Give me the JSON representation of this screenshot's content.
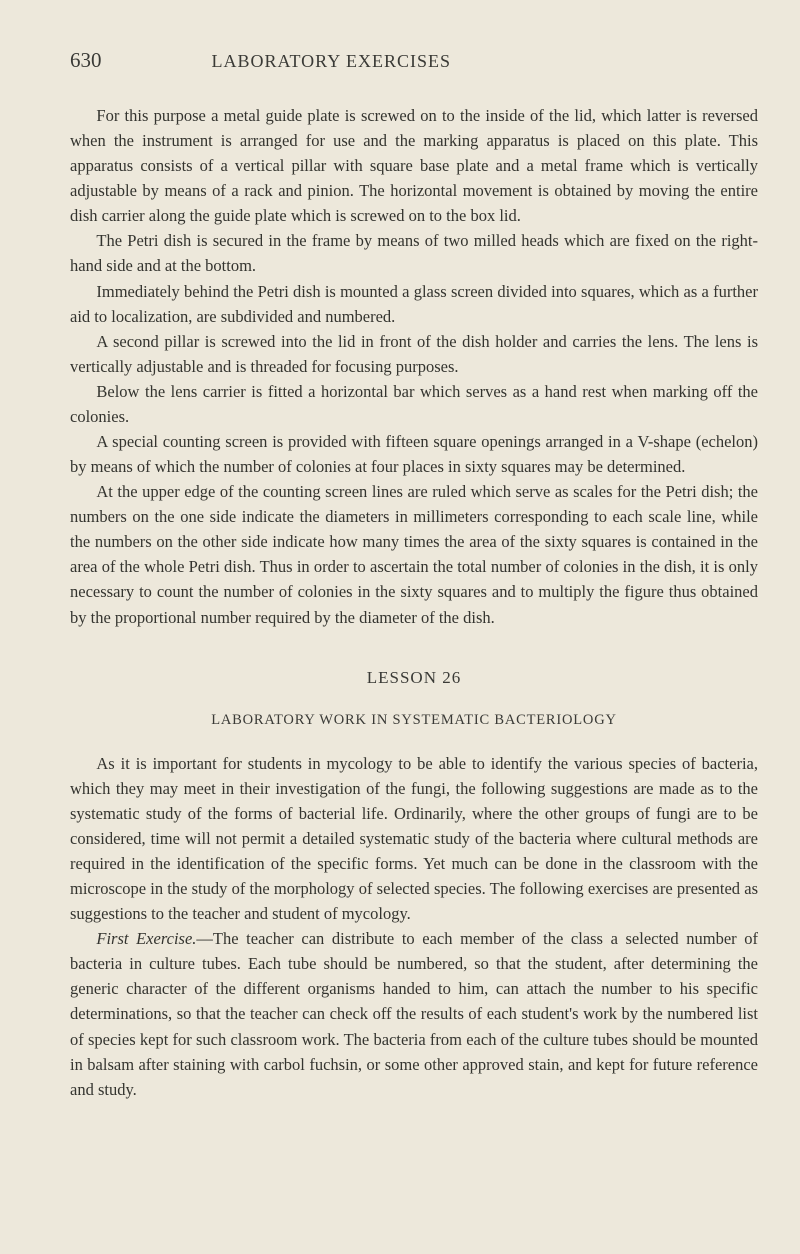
{
  "header": {
    "page_number": "630",
    "title": "LABORATORY EXERCISES"
  },
  "paragraphs": {
    "p1": "For this purpose a metal guide plate is screwed on to the inside of the lid, which latter is reversed when the instrument is arranged for use and the marking apparatus is placed on this plate. This apparatus consists of a vertical pillar with square base plate and a metal frame which is vertically adjustable by means of a rack and pinion. The horizontal movement is obtained by moving the entire dish carrier along the guide plate which is screwed on to the box lid.",
    "p2": "The Petri dish is secured in the frame by means of two milled heads which are fixed on the right-hand side and at the bottom.",
    "p3": "Immediately behind the Petri dish is mounted a glass screen divided into squares, which as a further aid to localization, are subdivided and numbered.",
    "p4": "A second pillar is screwed into the lid in front of the dish holder and carries the lens. The lens is vertically adjustable and is threaded for focusing purposes.",
    "p5": "Below the lens carrier is fitted a horizontal bar which serves as a hand rest when marking off the colonies.",
    "p6": "A special counting screen is provided with fifteen square openings arranged in a V-shape (echelon) by means of which the number of colonies at four places in sixty squares may be determined.",
    "p7": "At the upper edge of the counting screen lines are ruled which serve as scales for the Petri dish; the numbers on the one side indicate the diameters in millimeters corresponding to each scale line, while the numbers on the other side indicate how many times the area of the sixty squares is contained in the area of the whole Petri dish. Thus in order to ascertain the total number of colonies in the dish, it is only necessary to count the number of colonies in the sixty squares and to multiply the figure thus obtained by the proportional number required by the diameter of the dish.",
    "lesson": "LESSON 26",
    "subheading": "LABORATORY WORK IN SYSTEMATIC BACTERIOLOGY",
    "p8": "As it is important for students in mycology to be able to identify the various species of bacteria, which they may meet in their investigation of the fungi, the following suggestions are made as to the systematic study of the forms of bacterial life. Ordinarily, where the other groups of fungi are to be considered, time will not permit a detailed systematic study of the bacteria where cultural methods are required in the identification of the specific forms. Yet much can be done in the classroom with the microscope in the study of the morphology of selected species. The following exercises are presented as suggestions to the teacher and student of mycology.",
    "p9_label": "First Exercise.",
    "p9_rest": "—The teacher can distribute to each member of the class a selected number of bacteria in culture tubes. Each tube should be numbered, so that the student, after determining the generic character of the different organisms handed to him, can attach the number to his specific determinations, so that the teacher can check off the results of each student's work by the numbered list of species kept for such classroom work. The bacteria from each of the culture tubes should be mounted in balsam after staining with carbol fuchsin, or some other approved stain, and kept for future reference and study."
  }
}
